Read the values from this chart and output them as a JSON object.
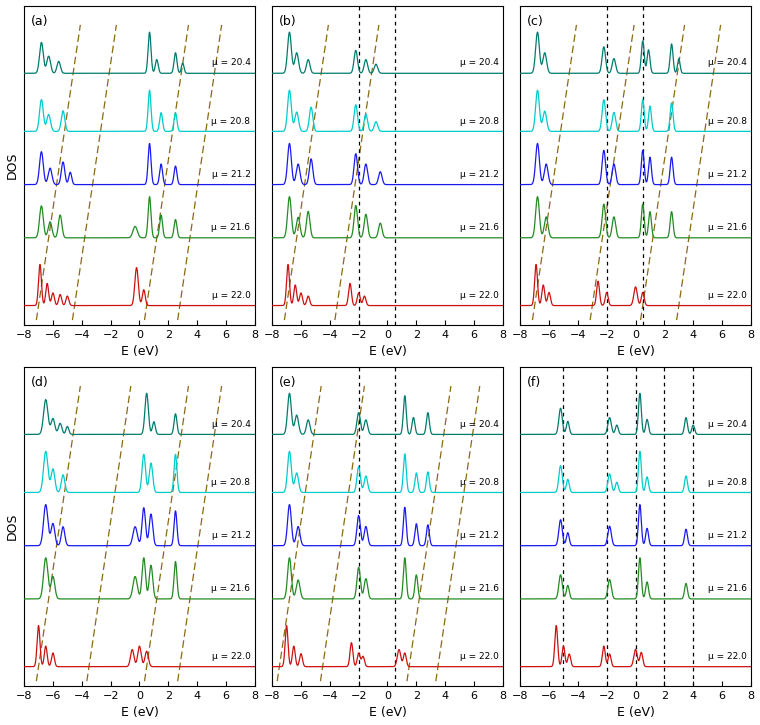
{
  "panel_labels": [
    "(a)",
    "(b)",
    "(c)",
    "(d)",
    "(e)",
    "(f)"
  ],
  "mu_vals": [
    20.4,
    20.8,
    21.2,
    21.6,
    22.0
  ],
  "curve_colors": [
    "#007b6e",
    "#00cccc",
    "#1a1aee",
    "#228B22",
    "#cc1111"
  ],
  "xlim": [
    -8,
    8
  ],
  "xticks": [
    -8,
    -6,
    -4,
    -2,
    0,
    2,
    4,
    6,
    8
  ],
  "xlabel": "E (eV)",
  "ylabel": "DOS",
  "dashed_color": "#8B6914",
  "dotted_color": "#000000",
  "offsets": [
    4.8,
    3.6,
    2.5,
    1.4,
    0.0
  ],
  "scale": 1.0,
  "panel_dashed": {
    "a": [
      -7.0,
      -4.5,
      0.5,
      2.8
    ],
    "b": [
      -7.0,
      -3.5
    ],
    "c": [
      -7.0,
      -3.0,
      0.5,
      3.0
    ],
    "d": [
      -7.0,
      -3.5,
      0.5,
      2.8
    ],
    "e": [
      -7.5,
      -4.5,
      1.5,
      3.5
    ],
    "f": []
  },
  "panel_dotted": {
    "a": [],
    "b": [
      -2.0,
      0.5
    ],
    "c": [
      -2.0,
      0.5
    ],
    "d": [],
    "e": [
      -2.0,
      0.5
    ],
    "f": [
      -5.0,
      -2.0,
      0.0,
      2.0,
      4.0
    ]
  },
  "dashed_slope": 0.55
}
